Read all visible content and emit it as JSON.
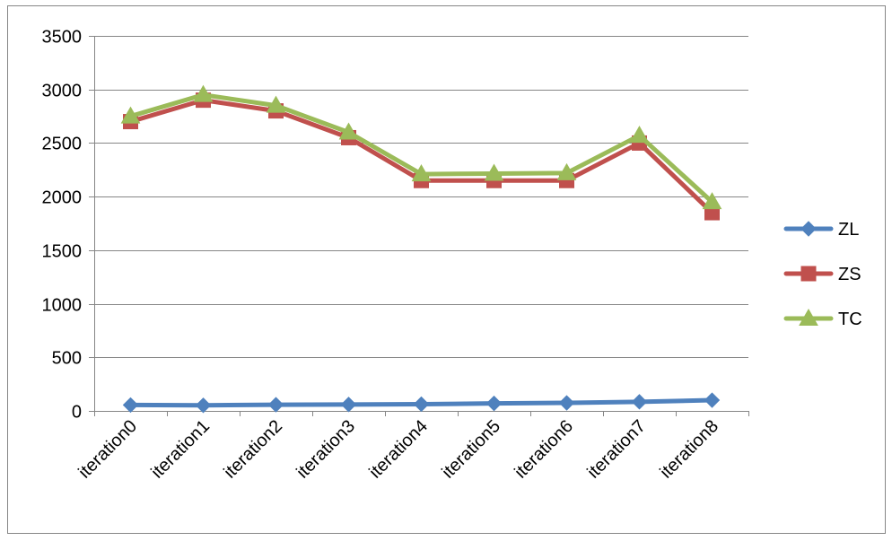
{
  "chart_data": {
    "type": "line",
    "title": "",
    "xlabel": "",
    "ylabel": "",
    "categories": [
      "iteration0",
      "iteration1",
      "iteration2",
      "iteration3",
      "iteration4",
      "iteration5",
      "iteration6",
      "iteration7",
      "iteration8"
    ],
    "ylim": [
      0,
      3500
    ],
    "yticks": [
      0,
      500,
      1000,
      1500,
      2000,
      2500,
      3000,
      3500
    ],
    "grid": "horizontal",
    "legend_position": "right",
    "series": [
      {
        "name": "ZL",
        "color": "#4F81BD",
        "marker": "diamond",
        "values": [
          55,
          52,
          58,
          60,
          63,
          70,
          75,
          85,
          100
        ]
      },
      {
        "name": "ZS",
        "color": "#C0504D",
        "marker": "square",
        "values": [
          2700,
          2900,
          2800,
          2550,
          2150,
          2150,
          2150,
          2500,
          1850
        ]
      },
      {
        "name": "TC",
        "color": "#9BBB59",
        "marker": "triangle",
        "values": [
          2750,
          2950,
          2850,
          2600,
          2210,
          2215,
          2220,
          2570,
          1950
        ]
      }
    ]
  }
}
